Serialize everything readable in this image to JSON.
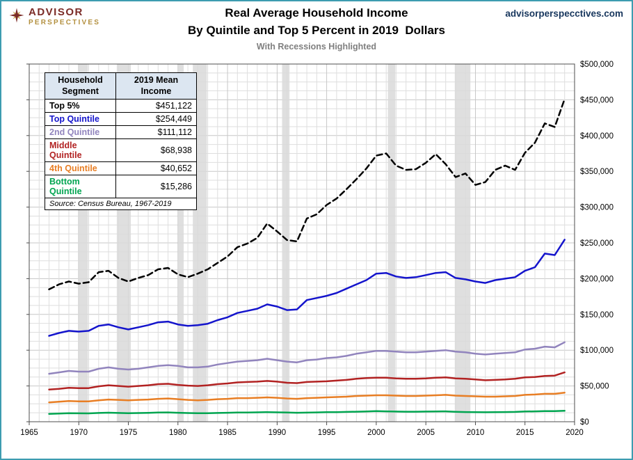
{
  "page": {
    "site": "advisorperspecctives.com",
    "logo": {
      "line1": "ADVISOR",
      "line2": "PERSPECTIVES"
    },
    "title_line1": "Real Average Household Income",
    "title_line2": "By Quintile and Top 5 Percent in 2019  Dollars",
    "subtitle": "With Recessions Highlighted"
  },
  "legend": {
    "col1": "Household Segment",
    "col2": "2019 Mean Income",
    "rows": [
      {
        "name": "Top 5%",
        "value": "$451,122",
        "color": "#000000"
      },
      {
        "name": "Top Quintile",
        "value": "$254,449",
        "color": "#1414CC"
      },
      {
        "name": "2nd Quintile",
        "value": "$111,112",
        "color": "#9184BD"
      },
      {
        "name": "Middle Quintile",
        "value": "$68,938",
        "color": "#B22222"
      },
      {
        "name": "4th Quintile",
        "value": "$40,652",
        "color": "#E87E24"
      },
      {
        "name": "Bottom Quintile",
        "value": "$15,286",
        "color": "#00A550"
      }
    ],
    "source": "Source: Census Bureau, 1967-2019"
  },
  "chart_data": {
    "type": "line",
    "title": "Real Average Household Income By Quintile and Top 5 Percent in 2019 Dollars",
    "subtitle": "With Recessions Highlighted",
    "xlabel": "",
    "ylabel": "",
    "unit": "USD (2019 dollars)",
    "xlim": [
      1965,
      2020
    ],
    "ylim": [
      0,
      500000
    ],
    "grid": {
      "x_step": 1,
      "y_step": 12500
    },
    "x_ticks": [
      1965,
      1970,
      1975,
      1980,
      1985,
      1990,
      1995,
      2000,
      2005,
      2010,
      2015,
      2020
    ],
    "y_tick_values": [
      0,
      50000,
      100000,
      150000,
      200000,
      250000,
      300000,
      350000,
      400000,
      450000,
      500000
    ],
    "y_tick_labels": [
      "$0",
      "$50,000",
      "$100,000",
      "$150,000",
      "$200,000",
      "$250,000",
      "$300,000",
      "$350,000",
      "$400,000",
      "$450,000",
      "$500,000"
    ],
    "recession_color": "#D9D9D9",
    "recessions": [
      [
        1969.92,
        1970.92
      ],
      [
        1973.83,
        1975.25
      ],
      [
        1980.0,
        1980.58
      ],
      [
        1981.5,
        1982.92
      ],
      [
        1990.5,
        1991.25
      ],
      [
        2001.17,
        2001.92
      ],
      [
        2007.92,
        2009.5
      ]
    ],
    "x": [
      1967,
      1968,
      1969,
      1970,
      1971,
      1972,
      1973,
      1974,
      1975,
      1976,
      1977,
      1978,
      1979,
      1980,
      1981,
      1982,
      1983,
      1984,
      1985,
      1986,
      1987,
      1988,
      1989,
      1990,
      1991,
      1992,
      1993,
      1994,
      1995,
      1996,
      1997,
      1998,
      1999,
      2000,
      2001,
      2002,
      2003,
      2004,
      2005,
      2006,
      2007,
      2008,
      2009,
      2010,
      2011,
      2012,
      2013,
      2014,
      2015,
      2016,
      2017,
      2018,
      2019
    ],
    "series": [
      {
        "id": "top-5-percent",
        "name": "Top 5%",
        "color": "#000000",
        "dash": "8 5",
        "values": [
          185000,
          192000,
          196000,
          193000,
          195000,
          209000,
          211000,
          201000,
          196000,
          201000,
          205000,
          213000,
          215000,
          206000,
          202000,
          207000,
          213000,
          222000,
          231000,
          244000,
          249000,
          257000,
          277000,
          266000,
          254000,
          252000,
          284000,
          290000,
          303000,
          312000,
          325000,
          339000,
          354000,
          372000,
          375000,
          358000,
          352000,
          353000,
          362000,
          374000,
          360000,
          342000,
          347000,
          331000,
          335000,
          352000,
          358000,
          352000,
          376000,
          390000,
          417000,
          412000,
          451122
        ]
      },
      {
        "id": "top-quintile",
        "name": "Top Quintile",
        "color": "#1414CC",
        "dash": null,
        "values": [
          120000,
          124000,
          127000,
          126000,
          127000,
          134000,
          136000,
          132000,
          129000,
          132000,
          135000,
          139000,
          140000,
          136000,
          134000,
          135000,
          137000,
          142000,
          146000,
          152000,
          155000,
          158000,
          164000,
          161000,
          156000,
          157000,
          170000,
          173000,
          176000,
          180000,
          186000,
          192000,
          198000,
          207000,
          208000,
          203000,
          201000,
          202000,
          205000,
          208000,
          209000,
          201000,
          199000,
          196000,
          194000,
          198000,
          200000,
          202000,
          211000,
          216000,
          235000,
          233000,
          254449
        ]
      },
      {
        "id": "second-quintile",
        "name": "2nd Quintile",
        "color": "#9184BD",
        "dash": null,
        "values": [
          67000,
          69000,
          71000,
          70000,
          70000,
          74000,
          76000,
          74000,
          73000,
          74000,
          76000,
          78000,
          79000,
          78000,
          76000,
          76000,
          77000,
          80000,
          82000,
          84000,
          85000,
          86000,
          88000,
          86000,
          84000,
          83000,
          86000,
          87000,
          89000,
          90000,
          92000,
          95000,
          97000,
          99000,
          99000,
          98000,
          97000,
          97000,
          98000,
          99000,
          100000,
          98000,
          97000,
          95000,
          94000,
          95000,
          96000,
          97000,
          101000,
          102000,
          105000,
          104000,
          111112
        ]
      },
      {
        "id": "middle-quintile",
        "name": "Middle Quintile",
        "color": "#B22222",
        "dash": null,
        "values": [
          45000,
          46000,
          47500,
          47000,
          47000,
          49500,
          51000,
          50000,
          49000,
          50000,
          51000,
          52500,
          53000,
          51500,
          50500,
          50000,
          51000,
          52500,
          53500,
          55000,
          55500,
          56000,
          57000,
          56000,
          54500,
          54000,
          55500,
          56000,
          56500,
          57500,
          58500,
          60000,
          61000,
          61500,
          61500,
          60500,
          60000,
          60000,
          60500,
          61500,
          62000,
          60500,
          60000,
          59000,
          58000,
          58500,
          59000,
          60000,
          62000,
          62500,
          64000,
          64500,
          68938
        ]
      },
      {
        "id": "fourth-quintile",
        "name": "4th Quintile",
        "color": "#E87E24",
        "dash": null,
        "values": [
          27000,
          28000,
          29000,
          28500,
          28500,
          30000,
          31000,
          30500,
          30000,
          30500,
          31000,
          32000,
          32500,
          31500,
          30500,
          30000,
          30500,
          31500,
          32000,
          33000,
          33000,
          33500,
          34000,
          33500,
          32500,
          32000,
          33000,
          33500,
          34000,
          34500,
          35000,
          36000,
          36500,
          37000,
          37000,
          36500,
          36000,
          36000,
          36500,
          37000,
          37500,
          36500,
          36000,
          35500,
          35000,
          35000,
          35500,
          36000,
          37500,
          38000,
          39000,
          39000,
          40652
        ]
      },
      {
        "id": "bottom-quintile",
        "name": "Bottom Quintile",
        "color": "#00A550",
        "dash": null,
        "values": [
          11000,
          11500,
          12000,
          11800,
          11700,
          12300,
          12600,
          12300,
          12000,
          12200,
          12400,
          12800,
          13000,
          12500,
          12200,
          11900,
          11900,
          12300,
          12500,
          12800,
          12900,
          13100,
          13400,
          13100,
          12800,
          12500,
          12700,
          13000,
          13300,
          13400,
          13700,
          14000,
          14400,
          14800,
          14500,
          14200,
          14000,
          14000,
          14200,
          14400,
          14500,
          13900,
          13500,
          13300,
          13200,
          13300,
          13500,
          13700,
          14300,
          14500,
          14800,
          14900,
          15286
        ]
      }
    ],
    "legend_position": "top-left-table"
  }
}
